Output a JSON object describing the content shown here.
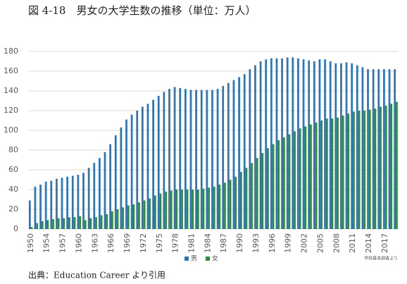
{
  "chart_data": {
    "type": "bar",
    "title": "図 4-18　男女の大学生数の推移（単位：万人）",
    "note": "学校基本調査より",
    "source": "出典：Education Career より引用",
    "categories": [
      "1950",
      null,
      null,
      "1954",
      null,
      null,
      "1957",
      null,
      null,
      "1960",
      null,
      null,
      "1963",
      null,
      null,
      "1966",
      null,
      null,
      "1969",
      null,
      null,
      "1972",
      null,
      null,
      "1975",
      null,
      null,
      "1978",
      null,
      null,
      "1981",
      null,
      null,
      "1984",
      null,
      null,
      "1987",
      null,
      null,
      "1990",
      null,
      null,
      "1993",
      null,
      null,
      "1996",
      null,
      null,
      "1999",
      null,
      null,
      "2002",
      null,
      null,
      "2005",
      null,
      null,
      "2008",
      null,
      null,
      "2011",
      null,
      null,
      "2014",
      null,
      null,
      "2017",
      null,
      null
    ],
    "series": [
      {
        "name": "男",
        "color": "#2e75b6",
        "values": [
          29,
          43,
          45,
          48,
          49,
          51,
          52,
          53,
          54,
          55,
          57,
          62,
          67,
          72,
          78,
          86,
          95,
          103,
          111,
          116,
          120,
          124,
          127,
          131,
          135,
          139,
          142,
          144,
          143,
          142,
          141,
          141,
          141,
          141,
          141,
          142,
          145,
          148,
          151,
          154,
          157,
          162,
          166,
          170,
          172,
          173,
          173,
          173,
          174,
          174,
          173,
          172,
          171,
          170,
          172,
          172,
          170,
          168,
          168,
          169,
          168,
          166,
          164,
          162,
          162,
          162,
          162,
          162,
          162
        ]
      },
      {
        "name": "女",
        "color": "#2e8b3e",
        "values": [
          2,
          6,
          8,
          9,
          10,
          11,
          11,
          12,
          12,
          13,
          9,
          11,
          12,
          14,
          15,
          18,
          20,
          22,
          24,
          25,
          27,
          29,
          31,
          34,
          36,
          38,
          39,
          40,
          40,
          40,
          40,
          40,
          41,
          42,
          43,
          45,
          47,
          50,
          53,
          58,
          62,
          67,
          72,
          77,
          82,
          86,
          90,
          93,
          96,
          99,
          102,
          104,
          106,
          108,
          110,
          112,
          112,
          113,
          115,
          117,
          119,
          120,
          120,
          121,
          122,
          124,
          125,
          127,
          129
        ]
      }
    ],
    "ylim": [
      0,
      180
    ],
    "yticks": [
      0,
      20,
      40,
      60,
      80,
      100,
      120,
      140,
      160,
      180
    ],
    "grid": true,
    "legend": "bottom"
  }
}
